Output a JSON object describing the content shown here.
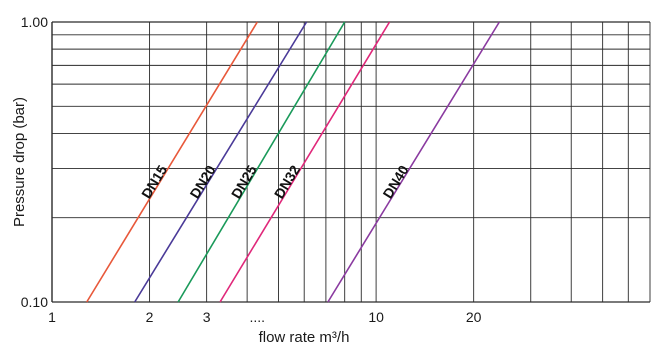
{
  "chart_data": {
    "type": "line",
    "xlabel": "flow rate m³/h",
    "ylabel": "Pressure drop (bar)",
    "x_scale": "log",
    "y_scale": "log",
    "xlim": [
      1,
      70
    ],
    "ylim": [
      0.1,
      1.0
    ],
    "x_tick_labels": [
      "1",
      "2",
      "3",
      "....",
      "10",
      "20"
    ],
    "y_tick_labels": [
      "1.00",
      "0.10"
    ],
    "grid": true,
    "series": [
      {
        "name": "DN15",
        "color": "#e8583a",
        "x": [
          1.28,
          4.3
        ],
        "y": [
          0.1,
          1.0
        ]
      },
      {
        "name": "DN20",
        "color": "#4a3a98",
        "x": [
          1.8,
          6.1
        ],
        "y": [
          0.1,
          1.0
        ]
      },
      {
        "name": "DN25",
        "color": "#1a9a5a",
        "x": [
          2.45,
          8.0
        ],
        "y": [
          0.1,
          1.0
        ]
      },
      {
        "name": "DN32",
        "color": "#e0287a",
        "x": [
          3.3,
          11.0
        ],
        "y": [
          0.1,
          1.0
        ]
      },
      {
        "name": "DN40",
        "color": "#8a3aa0",
        "x": [
          7.1,
          24.0
        ],
        "y": [
          0.1,
          1.0
        ]
      }
    ]
  }
}
